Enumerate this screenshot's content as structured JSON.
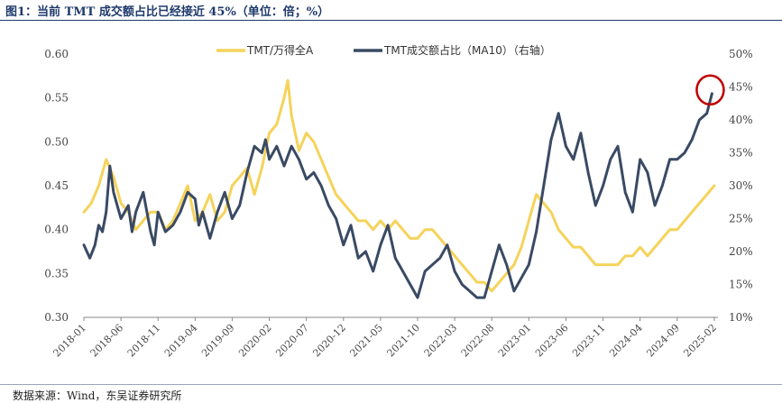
{
  "title": "图1：当前 TMT 成交额占比已经接近 45%（单位：倍；%）",
  "source": "数据来源：Wind，东吴证券研究所",
  "colors": {
    "series1": "#F5D35A",
    "series2": "#3A4A64",
    "highlight": "#C00000",
    "axis": "#888888"
  },
  "chart_data": {
    "type": "line",
    "title": "当前 TMT 成交额占比已经接近 45%",
    "legend_position": "top-center",
    "left_axis": {
      "ticks": [
        "0.60",
        "0.55",
        "0.50",
        "0.45",
        "0.40",
        "0.35",
        "0.30"
      ],
      "ylim": [
        0.3,
        0.6
      ]
    },
    "right_axis": {
      "ticks": [
        "50%",
        "45%",
        "40%",
        "35%",
        "30%",
        "25%",
        "20%",
        "15%",
        "10%"
      ],
      "ylim": [
        10,
        50
      ]
    },
    "x_ticks": [
      "2018-01",
      "2018-06",
      "2018-11",
      "2019-04",
      "2019-09",
      "2020-02",
      "2020-07",
      "2020-12",
      "2021-05",
      "2021-10",
      "2022-03",
      "2022-08",
      "2023-01",
      "2023-06",
      "2023-11",
      "2024-04",
      "2024-09",
      "2025-02"
    ],
    "x_range_months": [
      0,
      85.5
    ],
    "series": [
      {
        "name": "TMT/万得全A",
        "axis": "left",
        "points": [
          [
            0,
            0.42
          ],
          [
            1,
            0.43
          ],
          [
            2,
            0.45
          ],
          [
            3,
            0.48
          ],
          [
            4,
            0.46
          ],
          [
            5,
            0.43
          ],
          [
            6,
            0.42
          ],
          [
            7,
            0.4
          ],
          [
            8,
            0.41
          ],
          [
            9,
            0.42
          ],
          [
            10,
            0.42
          ],
          [
            11,
            0.4
          ],
          [
            12,
            0.41
          ],
          [
            13,
            0.43
          ],
          [
            14,
            0.45
          ],
          [
            15,
            0.41
          ],
          [
            16,
            0.42
          ],
          [
            17,
            0.44
          ],
          [
            18,
            0.41
          ],
          [
            19,
            0.42
          ],
          [
            20,
            0.45
          ],
          [
            21,
            0.46
          ],
          [
            22,
            0.47
          ],
          [
            23,
            0.44
          ],
          [
            24,
            0.47
          ],
          [
            25,
            0.51
          ],
          [
            26,
            0.52
          ],
          [
            27,
            0.55
          ],
          [
            27.5,
            0.57
          ],
          [
            28,
            0.53
          ],
          [
            29,
            0.49
          ],
          [
            30,
            0.51
          ],
          [
            31,
            0.5
          ],
          [
            32,
            0.48
          ],
          [
            33,
            0.46
          ],
          [
            34,
            0.44
          ],
          [
            35,
            0.43
          ],
          [
            36,
            0.42
          ],
          [
            37,
            0.41
          ],
          [
            38,
            0.41
          ],
          [
            39,
            0.4
          ],
          [
            40,
            0.41
          ],
          [
            41,
            0.4
          ],
          [
            42,
            0.41
          ],
          [
            43,
            0.4
          ],
          [
            44,
            0.39
          ],
          [
            45,
            0.39
          ],
          [
            46,
            0.4
          ],
          [
            47,
            0.4
          ],
          [
            48,
            0.39
          ],
          [
            49,
            0.38
          ],
          [
            50,
            0.37
          ],
          [
            51,
            0.36
          ],
          [
            52,
            0.35
          ],
          [
            53,
            0.34
          ],
          [
            54,
            0.34
          ],
          [
            55,
            0.33
          ],
          [
            56,
            0.34
          ],
          [
            57,
            0.35
          ],
          [
            58,
            0.36
          ],
          [
            59,
            0.38
          ],
          [
            60,
            0.41
          ],
          [
            61,
            0.44
          ],
          [
            62,
            0.43
          ],
          [
            63,
            0.42
          ],
          [
            64,
            0.4
          ],
          [
            65,
            0.39
          ],
          [
            66,
            0.38
          ],
          [
            67,
            0.38
          ],
          [
            68,
            0.37
          ],
          [
            69,
            0.36
          ],
          [
            70,
            0.36
          ],
          [
            71,
            0.36
          ],
          [
            72,
            0.36
          ],
          [
            73,
            0.37
          ],
          [
            74,
            0.37
          ],
          [
            75,
            0.38
          ],
          [
            76,
            0.37
          ],
          [
            77,
            0.38
          ],
          [
            78,
            0.39
          ],
          [
            79,
            0.4
          ],
          [
            80,
            0.4
          ],
          [
            81,
            0.41
          ],
          [
            82,
            0.42
          ],
          [
            83,
            0.43
          ],
          [
            84,
            0.44
          ],
          [
            85,
            0.45
          ]
        ]
      },
      {
        "name": "TMT成交额占比（MA10）（右轴）",
        "axis": "right",
        "points": [
          [
            0,
            21
          ],
          [
            0.8,
            19
          ],
          [
            1.5,
            21
          ],
          [
            2,
            24
          ],
          [
            2.5,
            23
          ],
          [
            3,
            26
          ],
          [
            3.5,
            33
          ],
          [
            4,
            29
          ],
          [
            5,
            25
          ],
          [
            6,
            27
          ],
          [
            6.5,
            23
          ],
          [
            7,
            26
          ],
          [
            8,
            29
          ],
          [
            9,
            23
          ],
          [
            9.5,
            21
          ],
          [
            10,
            26
          ],
          [
            11,
            23
          ],
          [
            12,
            24
          ],
          [
            13,
            26
          ],
          [
            14,
            29
          ],
          [
            15,
            28
          ],
          [
            15.5,
            24
          ],
          [
            16,
            26
          ],
          [
            17,
            22
          ],
          [
            18,
            26
          ],
          [
            19,
            29
          ],
          [
            20,
            25
          ],
          [
            21,
            27
          ],
          [
            22,
            32
          ],
          [
            23,
            36
          ],
          [
            24,
            35
          ],
          [
            24.5,
            37
          ],
          [
            25,
            34
          ],
          [
            26,
            36
          ],
          [
            27,
            33
          ],
          [
            28,
            36
          ],
          [
            29,
            34
          ],
          [
            30,
            31
          ],
          [
            31,
            32
          ],
          [
            32,
            30
          ],
          [
            33,
            27
          ],
          [
            34,
            25
          ],
          [
            35,
            21
          ],
          [
            36,
            24
          ],
          [
            37,
            19
          ],
          [
            38,
            20
          ],
          [
            39,
            17
          ],
          [
            40,
            21
          ],
          [
            41,
            24
          ],
          [
            42,
            19
          ],
          [
            43,
            17
          ],
          [
            44,
            15
          ],
          [
            45,
            13
          ],
          [
            46,
            17
          ],
          [
            47,
            18
          ],
          [
            48,
            19
          ],
          [
            49,
            21
          ],
          [
            50,
            17
          ],
          [
            51,
            15
          ],
          [
            52,
            14
          ],
          [
            53,
            13
          ],
          [
            54,
            13
          ],
          [
            55,
            17
          ],
          [
            56,
            21
          ],
          [
            57,
            18
          ],
          [
            58,
            14
          ],
          [
            59,
            16
          ],
          [
            60,
            18
          ],
          [
            61,
            23
          ],
          [
            62,
            30
          ],
          [
            63,
            37
          ],
          [
            64,
            41
          ],
          [
            65,
            36
          ],
          [
            66,
            34
          ],
          [
            67,
            38
          ],
          [
            68,
            32
          ],
          [
            69,
            27
          ],
          [
            70,
            30
          ],
          [
            71,
            34
          ],
          [
            72,
            36
          ],
          [
            73,
            29
          ],
          [
            74,
            26
          ],
          [
            75,
            34
          ],
          [
            76,
            32
          ],
          [
            77,
            27
          ],
          [
            78,
            30
          ],
          [
            79,
            34
          ],
          [
            80,
            34
          ],
          [
            81,
            35
          ],
          [
            82,
            37
          ],
          [
            83,
            40
          ],
          [
            84,
            41
          ],
          [
            84.7,
            44
          ]
        ]
      }
    ],
    "annotation": "red circle around the latest MA10 peak (~44%)"
  }
}
